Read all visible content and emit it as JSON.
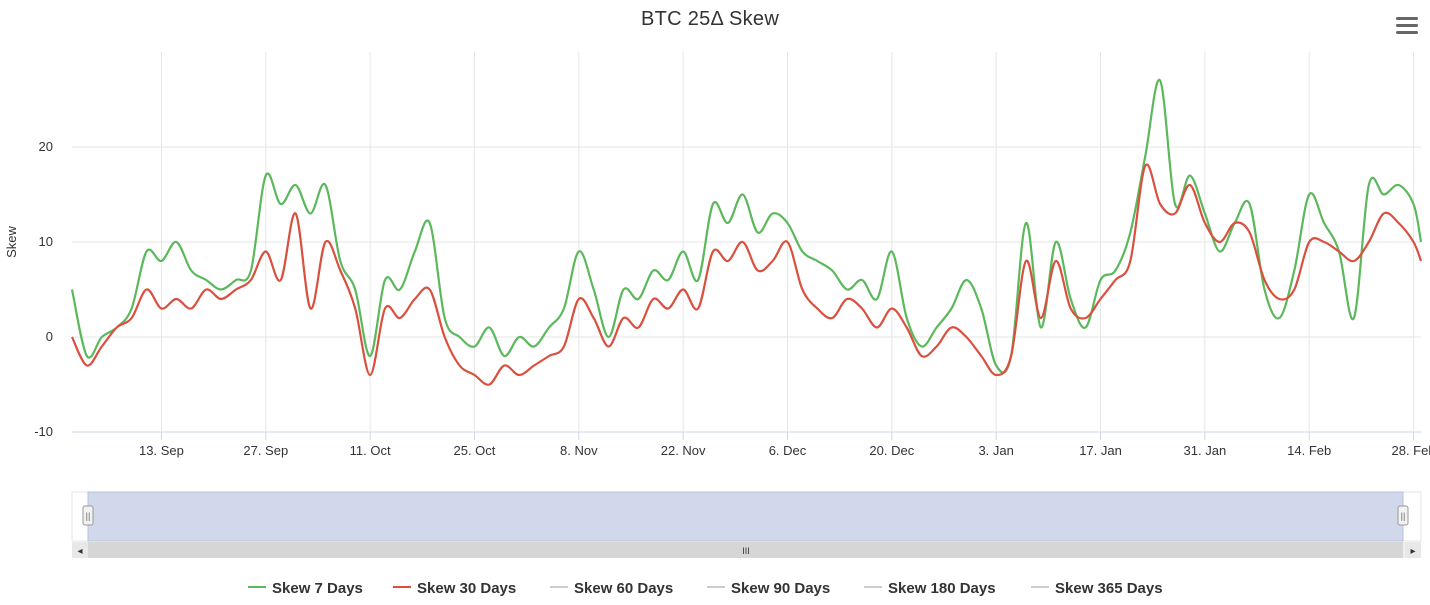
{
  "chart_data": {
    "type": "line",
    "title": "BTC 25Δ Skew",
    "ylabel": "Skew",
    "xlabel": "",
    "ylim": [
      -10,
      30
    ],
    "y_ticks": [
      -10,
      0,
      10,
      20
    ],
    "x_tick_labels": [
      "13. Sep",
      "27. Sep",
      "11. Oct",
      "25. Oct",
      "8. Nov",
      "22. Nov",
      "6. Dec",
      "20. Dec",
      "3. Jan",
      "17. Jan",
      "31. Jan",
      "14. Feb",
      "28. Feb"
    ],
    "x_start": "2021-09-01",
    "x_end": "2022-03-01",
    "grid": true,
    "legend_position": "bottom",
    "series": [
      {
        "name": "Skew 7 Days",
        "color": "#5cb85c",
        "visible": true,
        "x": [
          "2021-09-01",
          "2021-09-03",
          "2021-09-05",
          "2021-09-07",
          "2021-09-09",
          "2021-09-11",
          "2021-09-13",
          "2021-09-15",
          "2021-09-17",
          "2021-09-19",
          "2021-09-21",
          "2021-09-23",
          "2021-09-25",
          "2021-09-27",
          "2021-09-29",
          "2021-10-01",
          "2021-10-03",
          "2021-10-05",
          "2021-10-07",
          "2021-10-09",
          "2021-10-11",
          "2021-10-13",
          "2021-10-15",
          "2021-10-17",
          "2021-10-19",
          "2021-10-21",
          "2021-10-23",
          "2021-10-25",
          "2021-10-27",
          "2021-10-29",
          "2021-10-31",
          "2021-11-02",
          "2021-11-04",
          "2021-11-06",
          "2021-11-08",
          "2021-11-10",
          "2021-11-12",
          "2021-11-14",
          "2021-11-16",
          "2021-11-18",
          "2021-11-20",
          "2021-11-22",
          "2021-11-24",
          "2021-11-26",
          "2021-11-28",
          "2021-11-30",
          "2021-12-02",
          "2021-12-04",
          "2021-12-06",
          "2021-12-08",
          "2021-12-10",
          "2021-12-12",
          "2021-12-14",
          "2021-12-16",
          "2021-12-18",
          "2021-12-20",
          "2021-12-22",
          "2021-12-24",
          "2021-12-26",
          "2021-12-28",
          "2021-12-30",
          "2022-01-01",
          "2022-01-03",
          "2022-01-05",
          "2022-01-07",
          "2022-01-09",
          "2022-01-11",
          "2022-01-13",
          "2022-01-15",
          "2022-01-17",
          "2022-01-19",
          "2022-01-21",
          "2022-01-23",
          "2022-01-25",
          "2022-01-27",
          "2022-01-29",
          "2022-01-31",
          "2022-02-02",
          "2022-02-04",
          "2022-02-06",
          "2022-02-08",
          "2022-02-10",
          "2022-02-12",
          "2022-02-14",
          "2022-02-16",
          "2022-02-18",
          "2022-02-20",
          "2022-02-22",
          "2022-02-24",
          "2022-02-26",
          "2022-02-28",
          "2022-03-01"
        ],
        "values": [
          5,
          -2,
          0,
          1,
          3,
          9,
          8,
          10,
          7,
          6,
          5,
          6,
          7,
          17,
          14,
          16,
          13,
          16,
          8,
          5,
          -2,
          6,
          5,
          9,
          12,
          2,
          0,
          -1,
          1,
          -2,
          0,
          -1,
          1,
          3,
          9,
          5,
          0,
          5,
          4,
          7,
          6,
          9,
          6,
          14,
          12,
          15,
          11,
          13,
          12,
          9,
          8,
          7,
          5,
          6,
          4,
          9,
          2,
          -1,
          1,
          3,
          6,
          3,
          -3,
          -2,
          12,
          1,
          10,
          4,
          1,
          6,
          7,
          11,
          19,
          27,
          14,
          17,
          13,
          9,
          12,
          14,
          5,
          2,
          7,
          15,
          12,
          9,
          2,
          16,
          15,
          16,
          14,
          10
        ]
      },
      {
        "name": "Skew 30 Days",
        "color": "#d9503f",
        "visible": true,
        "x": [
          "2021-09-01",
          "2021-09-03",
          "2021-09-05",
          "2021-09-07",
          "2021-09-09",
          "2021-09-11",
          "2021-09-13",
          "2021-09-15",
          "2021-09-17",
          "2021-09-19",
          "2021-09-21",
          "2021-09-23",
          "2021-09-25",
          "2021-09-27",
          "2021-09-29",
          "2021-10-01",
          "2021-10-03",
          "2021-10-05",
          "2021-10-07",
          "2021-10-09",
          "2021-10-11",
          "2021-10-13",
          "2021-10-15",
          "2021-10-17",
          "2021-10-19",
          "2021-10-21",
          "2021-10-23",
          "2021-10-25",
          "2021-10-27",
          "2021-10-29",
          "2021-10-31",
          "2021-11-02",
          "2021-11-04",
          "2021-11-06",
          "2021-11-08",
          "2021-11-10",
          "2021-11-12",
          "2021-11-14",
          "2021-11-16",
          "2021-11-18",
          "2021-11-20",
          "2021-11-22",
          "2021-11-24",
          "2021-11-26",
          "2021-11-28",
          "2021-11-30",
          "2021-12-02",
          "2021-12-04",
          "2021-12-06",
          "2021-12-08",
          "2021-12-10",
          "2021-12-12",
          "2021-12-14",
          "2021-12-16",
          "2021-12-18",
          "2021-12-20",
          "2021-12-22",
          "2021-12-24",
          "2021-12-26",
          "2021-12-28",
          "2021-12-30",
          "2022-01-01",
          "2022-01-03",
          "2022-01-05",
          "2022-01-07",
          "2022-01-09",
          "2022-01-11",
          "2022-01-13",
          "2022-01-15",
          "2022-01-17",
          "2022-01-19",
          "2022-01-21",
          "2022-01-23",
          "2022-01-25",
          "2022-01-27",
          "2022-01-29",
          "2022-01-31",
          "2022-02-02",
          "2022-02-04",
          "2022-02-06",
          "2022-02-08",
          "2022-02-10",
          "2022-02-12",
          "2022-02-14",
          "2022-02-16",
          "2022-02-18",
          "2022-02-20",
          "2022-02-22",
          "2022-02-24",
          "2022-02-26",
          "2022-02-28",
          "2022-03-01"
        ],
        "values": [
          0,
          -3,
          -1,
          1,
          2,
          5,
          3,
          4,
          3,
          5,
          4,
          5,
          6,
          9,
          6,
          13,
          3,
          10,
          7,
          3,
          -4,
          3,
          2,
          4,
          5,
          0,
          -3,
          -4,
          -5,
          -3,
          -4,
          -3,
          -2,
          -1,
          4,
          2,
          -1,
          2,
          1,
          4,
          3,
          5,
          3,
          9,
          8,
          10,
          7,
          8,
          10,
          5,
          3,
          2,
          4,
          3,
          1,
          3,
          1,
          -2,
          -1,
          1,
          0,
          -2,
          -4,
          -2,
          8,
          2,
          8,
          3,
          2,
          4,
          6,
          8,
          18,
          14,
          13,
          16,
          12,
          10,
          12,
          11,
          6,
          4,
          5,
          10,
          10,
          9,
          8,
          10,
          13,
          12,
          10,
          8
        ]
      },
      {
        "name": "Skew 60 Days",
        "color": "#cccccc",
        "visible": false
      },
      {
        "name": "Skew 90 Days",
        "color": "#cccccc",
        "visible": false
      },
      {
        "name": "Skew 180 Days",
        "color": "#cccccc",
        "visible": false
      },
      {
        "name": "Skew 365 Days",
        "color": "#cccccc",
        "visible": false
      }
    ]
  },
  "navigator": {
    "scroll_center_glyph": "III",
    "left_arrow": "◂",
    "right_arrow": "▸",
    "handle_glyph": "||"
  },
  "menu": {
    "icon": "hamburger-menu-icon"
  },
  "colors": {
    "grid": "#e6e6e6",
    "navigator_mask": "#d2d8eb",
    "scrollbar_track": "#dcdcdc",
    "hidden_series": "#cccccc"
  }
}
